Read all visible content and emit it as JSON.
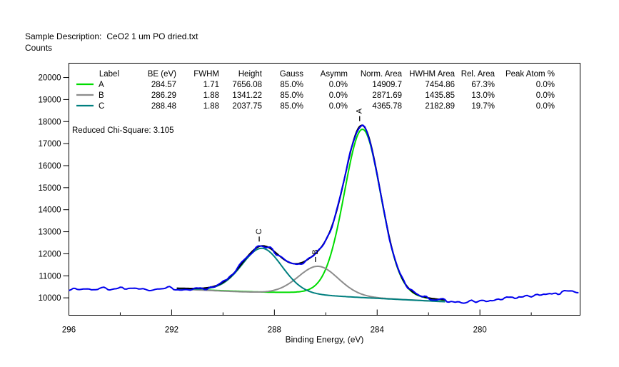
{
  "page": {
    "sample_description_label": "Sample Description:",
    "sample_description_value": "CeO2 1 um PO dried.txt",
    "counts_label": "Counts"
  },
  "chart_data": {
    "type": "line",
    "title": "",
    "xlabel": "Binding Energy, (eV)",
    "ylabel": "Counts",
    "grid": false,
    "legend_position": "top-inside-table",
    "x_axis": {
      "max": 296,
      "min": 276.1,
      "reversed": true,
      "major_ticks": [
        296,
        292,
        288,
        284,
        280
      ],
      "minor_ticks": [
        294,
        290,
        286,
        282,
        278
      ]
    },
    "y_axis": {
      "min": 9210,
      "max": 20650,
      "ticks": [
        10000,
        11000,
        12000,
        13000,
        14000,
        15000,
        16000,
        17000,
        18000,
        19000,
        20000
      ]
    },
    "reduced_chi_square": "Reduced Chi-Square: 3.105",
    "fit_table": {
      "columns": [
        "Label",
        "BE (eV)",
        "FWHM",
        "Height",
        "Gauss",
        "Asymm",
        "Norm. Area",
        "HWHM Area",
        "Rel. Area",
        "Peak Atom %"
      ],
      "rows": [
        {
          "color": "#00dc00",
          "cells": [
            "A",
            "284.57",
            "1.71",
            "7656.08",
            "85.0%",
            "0.0%",
            "14909.7",
            "7454.86",
            "67.3%",
            "0.0%"
          ]
        },
        {
          "color": "#8c8c8c",
          "cells": [
            "B",
            "286.29",
            "1.88",
            "1341.22",
            "85.0%",
            "0.0%",
            "2871.69",
            "1435.85",
            "13.0%",
            "0.0%"
          ]
        },
        {
          "color": "#007f7f",
          "cells": [
            "C",
            "288.48",
            "1.88",
            "2037.75",
            "85.0%",
            "0.0%",
            "4365.78",
            "2182.89",
            "19.7%",
            "0.0%"
          ]
        }
      ]
    },
    "peaks": [
      {
        "label": "A",
        "be": 284.57,
        "fwhm": 1.71,
        "height": 7656.08,
        "gauss_fraction": 0.85,
        "color": "#00dc00"
      },
      {
        "label": "B",
        "be": 286.29,
        "fwhm": 1.88,
        "height": 1341.22,
        "gauss_fraction": 0.85,
        "color": "#8c8c8c"
      },
      {
        "label": "C",
        "be": 288.48,
        "fwhm": 1.88,
        "height": 2037.75,
        "gauss_fraction": 0.85,
        "color": "#007f7f"
      }
    ],
    "baseline": {
      "start_be": 291.8,
      "start_counts": 10395,
      "end_be": 281.3,
      "end_counts": 9815
    },
    "raw_data": {
      "color": "#0000ee",
      "left_level": 10435,
      "right_plateau": 9845,
      "right_rise_start_be": 279.8,
      "right_edge_level": 10320,
      "noise_amplitude": 120,
      "seed": 1337
    },
    "envelope_color": "#000000"
  }
}
